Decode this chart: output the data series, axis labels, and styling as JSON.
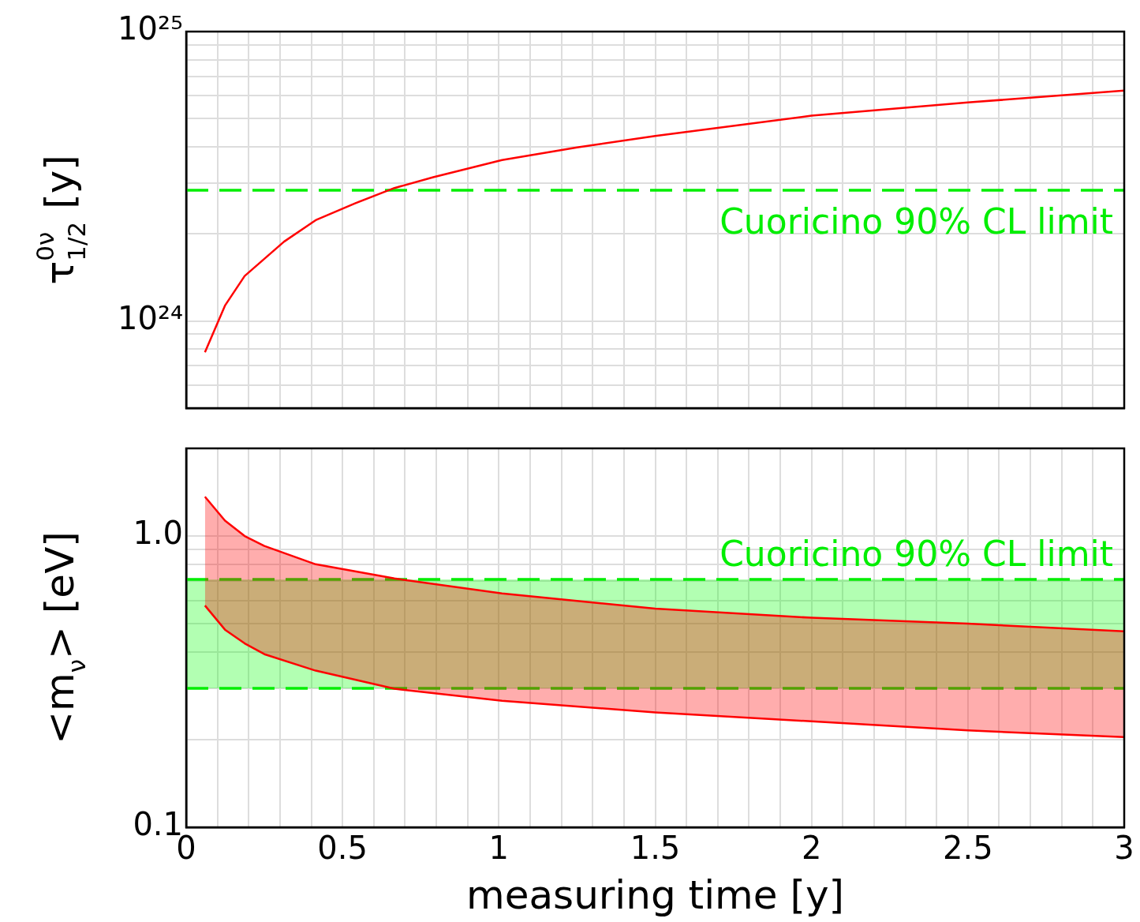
{
  "chart_data": [
    {
      "type": "line",
      "ylabel": "τ$^{0ν}$$_{1/2}$ [y]",
      "log": "y",
      "grid": true,
      "legend": false,
      "marker": "none",
      "tick_labels": "y",
      "xlim": [
        0,
        3
      ],
      "ylim": [
        5e+23,
        1e+25
      ],
      "xticks": [
        {
          "value": 0,
          "label": null
        },
        {
          "value": 0.1,
          "label": null
        },
        {
          "value": 0.2,
          "label": null
        },
        {
          "value": 0.3,
          "label": null
        },
        {
          "value": 0.4,
          "label": null
        },
        {
          "value": 0.5,
          "label": null
        },
        {
          "value": 0.6,
          "label": null
        },
        {
          "value": 0.7,
          "label": null
        },
        {
          "value": 0.8,
          "label": null
        },
        {
          "value": 0.9,
          "label": null
        },
        {
          "value": 1,
          "label": null
        },
        {
          "value": 1.1,
          "label": null
        },
        {
          "value": 1.2,
          "label": null
        },
        {
          "value": 1.3,
          "label": null
        },
        {
          "value": 1.4,
          "label": null
        },
        {
          "value": 1.5,
          "label": null
        },
        {
          "value": 1.6,
          "label": null
        },
        {
          "value": 1.7,
          "label": null
        },
        {
          "value": 1.8,
          "label": null
        },
        {
          "value": 1.9,
          "label": null
        },
        {
          "value": 2,
          "label": null
        },
        {
          "value": 2.1,
          "label": null
        },
        {
          "value": 2.2,
          "label": null
        },
        {
          "value": 2.3,
          "label": null
        },
        {
          "value": 2.4,
          "label": null
        },
        {
          "value": 2.5,
          "label": null
        },
        {
          "value": 2.6,
          "label": null
        },
        {
          "value": 2.7,
          "label": null
        },
        {
          "value": 2.8,
          "label": null
        },
        {
          "value": 2.9,
          "label": null
        },
        {
          "value": 3,
          "label": null
        }
      ],
      "yticks": [
        {
          "value": 6e+23,
          "label": null
        },
        {
          "value": 7e+23,
          "label": null
        },
        {
          "value": 8e+23,
          "label": null
        },
        {
          "value": 9e+23,
          "label": null
        },
        {
          "value": 1e+24,
          "label": "10²⁴"
        },
        {
          "value": 2e+24,
          "label": null
        },
        {
          "value": 3e+24,
          "label": null
        },
        {
          "value": 4e+24,
          "label": null
        },
        {
          "value": 5e+24,
          "label": null
        },
        {
          "value": 6e+24,
          "label": null
        },
        {
          "value": 7e+24,
          "label": null
        },
        {
          "value": 8e+24,
          "label": null
        },
        {
          "value": 9e+24,
          "label": null
        },
        {
          "value": 1e+25,
          "label": "10²⁵"
        }
      ],
      "series": [
        {
          "color": "#ff0000",
          "x": [
            0.06,
            0.124,
            0.187,
            0.25,
            0.313,
            0.414,
            0.54,
            0.666,
            0.79,
            1.01,
            1.25,
            1.5,
            2,
            2.5,
            3
          ],
          "values": [
            7.8e+23,
            1.13e+24,
            1.43e+24,
            1.64e+24,
            1.88e+24,
            2.23e+24,
            2.55e+24,
            2.88e+24,
            3.14e+24,
            3.6e+24,
            3.98e+24,
            4.36e+24,
            5.12e+24,
            5.69e+24,
            6.25e+24
          ]
        }
      ],
      "ref_lines": [
        {
          "axis": "y",
          "value": 2.83e+24,
          "label": "Cuoricino 90% CL limit",
          "color": "#00ee00",
          "line_style": "dashed"
        }
      ]
    },
    {
      "type": "area",
      "xlabel": "measuring time [y]",
      "ylabel": "<m$_{ν}$> [eV]",
      "log": "y",
      "grid": true,
      "legend": false,
      "marker": "none",
      "xlim": [
        0,
        3
      ],
      "ylim": [
        0.1,
        2
      ],
      "xticks": [
        0,
        {
          "value": 0.1,
          "label": null
        },
        {
          "value": 0.2,
          "label": null
        },
        {
          "value": 0.3,
          "label": null
        },
        {
          "value": 0.4,
          "label": null
        },
        0.5,
        {
          "value": 0.6,
          "label": null
        },
        {
          "value": 0.7,
          "label": null
        },
        {
          "value": 0.8,
          "label": null
        },
        {
          "value": 0.9,
          "label": null
        },
        1,
        {
          "value": 1.1,
          "label": null
        },
        {
          "value": 1.2,
          "label": null
        },
        {
          "value": 1.3,
          "label": null
        },
        {
          "value": 1.4,
          "label": null
        },
        1.5,
        {
          "value": 1.6,
          "label": null
        },
        {
          "value": 1.7,
          "label": null
        },
        {
          "value": 1.8,
          "label": null
        },
        {
          "value": 1.9,
          "label": null
        },
        2,
        {
          "value": 2.1,
          "label": null
        },
        {
          "value": 2.2,
          "label": null
        },
        {
          "value": 2.3,
          "label": null
        },
        {
          "value": 2.4,
          "label": null
        },
        2.5,
        {
          "value": 2.6,
          "label": null
        },
        {
          "value": 2.7,
          "label": null
        },
        {
          "value": 2.8,
          "label": null
        },
        {
          "value": 2.9,
          "label": null
        },
        3
      ],
      "yticks": [
        0.1,
        {
          "value": 0.2,
          "label": null
        },
        {
          "value": 0.3,
          "label": null
        },
        {
          "value": 0.4,
          "label": null
        },
        {
          "value": 0.5,
          "label": null
        },
        {
          "value": 0.6,
          "label": null
        },
        {
          "value": 0.7,
          "label": null
        },
        {
          "value": 0.8,
          "label": null
        },
        {
          "value": 0.9,
          "label": null
        },
        {
          "value": 1,
          "label": "1.0"
        }
      ],
      "series": [
        {
          "type": "line",
          "color": "#ff0000",
          "x": [
            0.06,
            0.124,
            0.187,
            0.25,
            0.414,
            0.666,
            1.01,
            1.5,
            2,
            2.5,
            3
          ],
          "values": [
            0.577,
            0.477,
            0.428,
            0.393,
            0.345,
            0.299,
            0.272,
            0.248,
            0.231,
            0.215,
            0.204
          ]
        },
        {
          "color": "#ff0000",
          "x": [
            0.06,
            0.124,
            0.187,
            0.25,
            0.414,
            0.666,
            1.01,
            1.5,
            2,
            2.5,
            3
          ],
          "values": [
            1.365,
            1.13,
            1.0,
            0.925,
            0.8,
            0.715,
            0.635,
            0.563,
            0.524,
            0.5,
            0.471
          ]
        }
      ],
      "ref_lines": [
        {
          "axis": "y",
          "value": 0.71,
          "label": "Cuoricino 90% CL limit",
          "color": "#00ee00",
          "line_style": "dashed"
        },
        {
          "axis": "y",
          "value": 0.3,
          "color": "#00ee00",
          "line_style": "dashed"
        }
      ],
      "bands": [
        {
          "axis": "y",
          "from": 0.3,
          "to": 0.71,
          "color": "#00ff00"
        }
      ]
    }
  ]
}
